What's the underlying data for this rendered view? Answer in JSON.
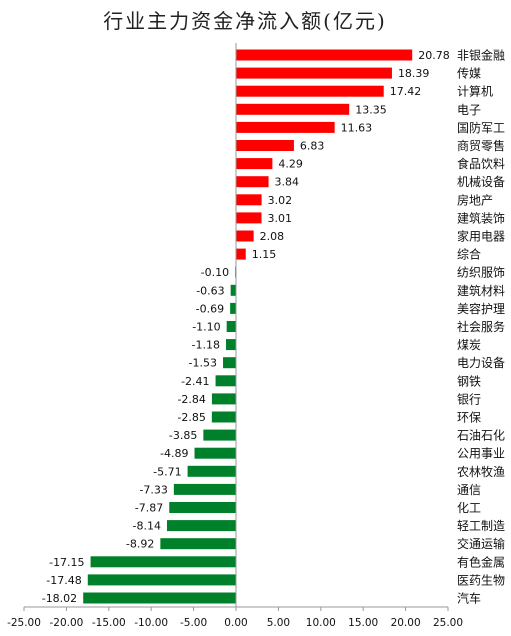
{
  "chart_data": {
    "type": "bar",
    "orientation": "horizontal",
    "title": "行业主力资金净流入额(亿元)",
    "categories": [
      "非银金融",
      "传媒",
      "计算机",
      "电子",
      "国防军工",
      "商贸零售",
      "食品饮料",
      "机械设备",
      "房地产",
      "建筑装饰",
      "家用电器",
      "综合",
      "纺织服饰",
      "建筑材料",
      "美容护理",
      "社会服务",
      "煤炭",
      "电力设备",
      "钢铁",
      "银行",
      "环保",
      "石油石化",
      "公用事业",
      "农林牧渔",
      "通信",
      "化工",
      "轻工制造",
      "交通运输",
      "有色金属",
      "医药生物",
      "汽车"
    ],
    "values": [
      20.78,
      18.39,
      17.42,
      13.35,
      11.63,
      6.83,
      4.29,
      3.84,
      3.02,
      3.01,
      2.08,
      1.15,
      -0.1,
      -0.63,
      -0.69,
      -1.1,
      -1.18,
      -1.53,
      -2.41,
      -2.84,
      -2.85,
      -3.85,
      -4.89,
      -5.71,
      -7.33,
      -7.87,
      -8.14,
      -8.92,
      -17.15,
      -17.48,
      -18.02
    ],
    "value_labels": [
      "20.78",
      "18.39",
      "17.42",
      "13.35",
      "11.63",
      "6.83",
      "4.29",
      "3.84",
      "3.02",
      "3.01",
      "2.08",
      "1.15",
      "-0.10",
      "-0.63",
      "-0.69",
      "-1.10",
      "-1.18",
      "-1.53",
      "-2.41",
      "-2.84",
      "-2.85",
      "-3.85",
      "-4.89",
      "-5.71",
      "-7.33",
      "-7.87",
      "-8.14",
      "-8.92",
      "-17.15",
      "-17.48",
      "-18.02"
    ],
    "xlim": [
      -25,
      25
    ],
    "xticks": [
      "-25.00",
      "-20.00",
      "-15.00",
      "-10.00",
      "-5.00",
      "0.00",
      "5.00",
      "10.00",
      "15.00",
      "20.00",
      "25.00"
    ],
    "grid": false,
    "colors": {
      "positive": "#ff0000",
      "negative": "#00802b"
    }
  }
}
